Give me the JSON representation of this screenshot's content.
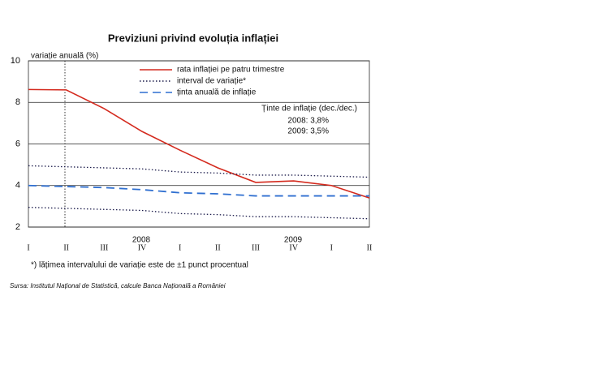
{
  "chart_data": {
    "type": "line",
    "title": "Previziuni privind evoluția inflației",
    "ylabel": "variație anuală (%)",
    "categories": [
      "I",
      "II",
      "III",
      "IV",
      "I",
      "II",
      "III",
      "IV",
      "I",
      "II"
    ],
    "year_labels": [
      "2008",
      "2009"
    ],
    "ylim": [
      2,
      10
    ],
    "yticks": [
      2,
      4,
      6,
      8,
      10
    ],
    "grid": true,
    "series": [
      {
        "name": "rata inflației pe patru trimestre",
        "color": "#d42a1e",
        "style": "solid",
        "values": [
          8.62,
          8.6,
          7.7,
          6.6,
          5.7,
          4.85,
          4.15,
          4.22,
          4.0,
          3.4
        ]
      },
      {
        "name": "interval de variație*",
        "color": "#1a1a4a",
        "style": "dotted",
        "values": [
          4.95,
          4.9,
          4.85,
          4.8,
          4.65,
          4.6,
          4.5,
          4.5,
          4.45,
          4.4
        ],
        "lower": [
          2.95,
          2.9,
          2.85,
          2.8,
          2.65,
          2.6,
          2.5,
          2.5,
          2.45,
          2.4
        ]
      },
      {
        "name": "ținta anuală de inflație",
        "color": "#2f6fd0",
        "style": "dashed",
        "values": [
          4.0,
          3.95,
          3.9,
          3.8,
          3.65,
          3.6,
          3.5,
          3.5,
          3.5,
          3.5
        ]
      }
    ],
    "annotations": [
      "Ținte de inflație (dec./dec.)",
      "2008: 3,8%",
      "2009: 3,5%"
    ],
    "footnote": "*) lățimea intervalului de variație este de ±1 punct procentual",
    "source": "Sursa: Institutul Național de Statistică, calcule Banca Națională a României"
  }
}
